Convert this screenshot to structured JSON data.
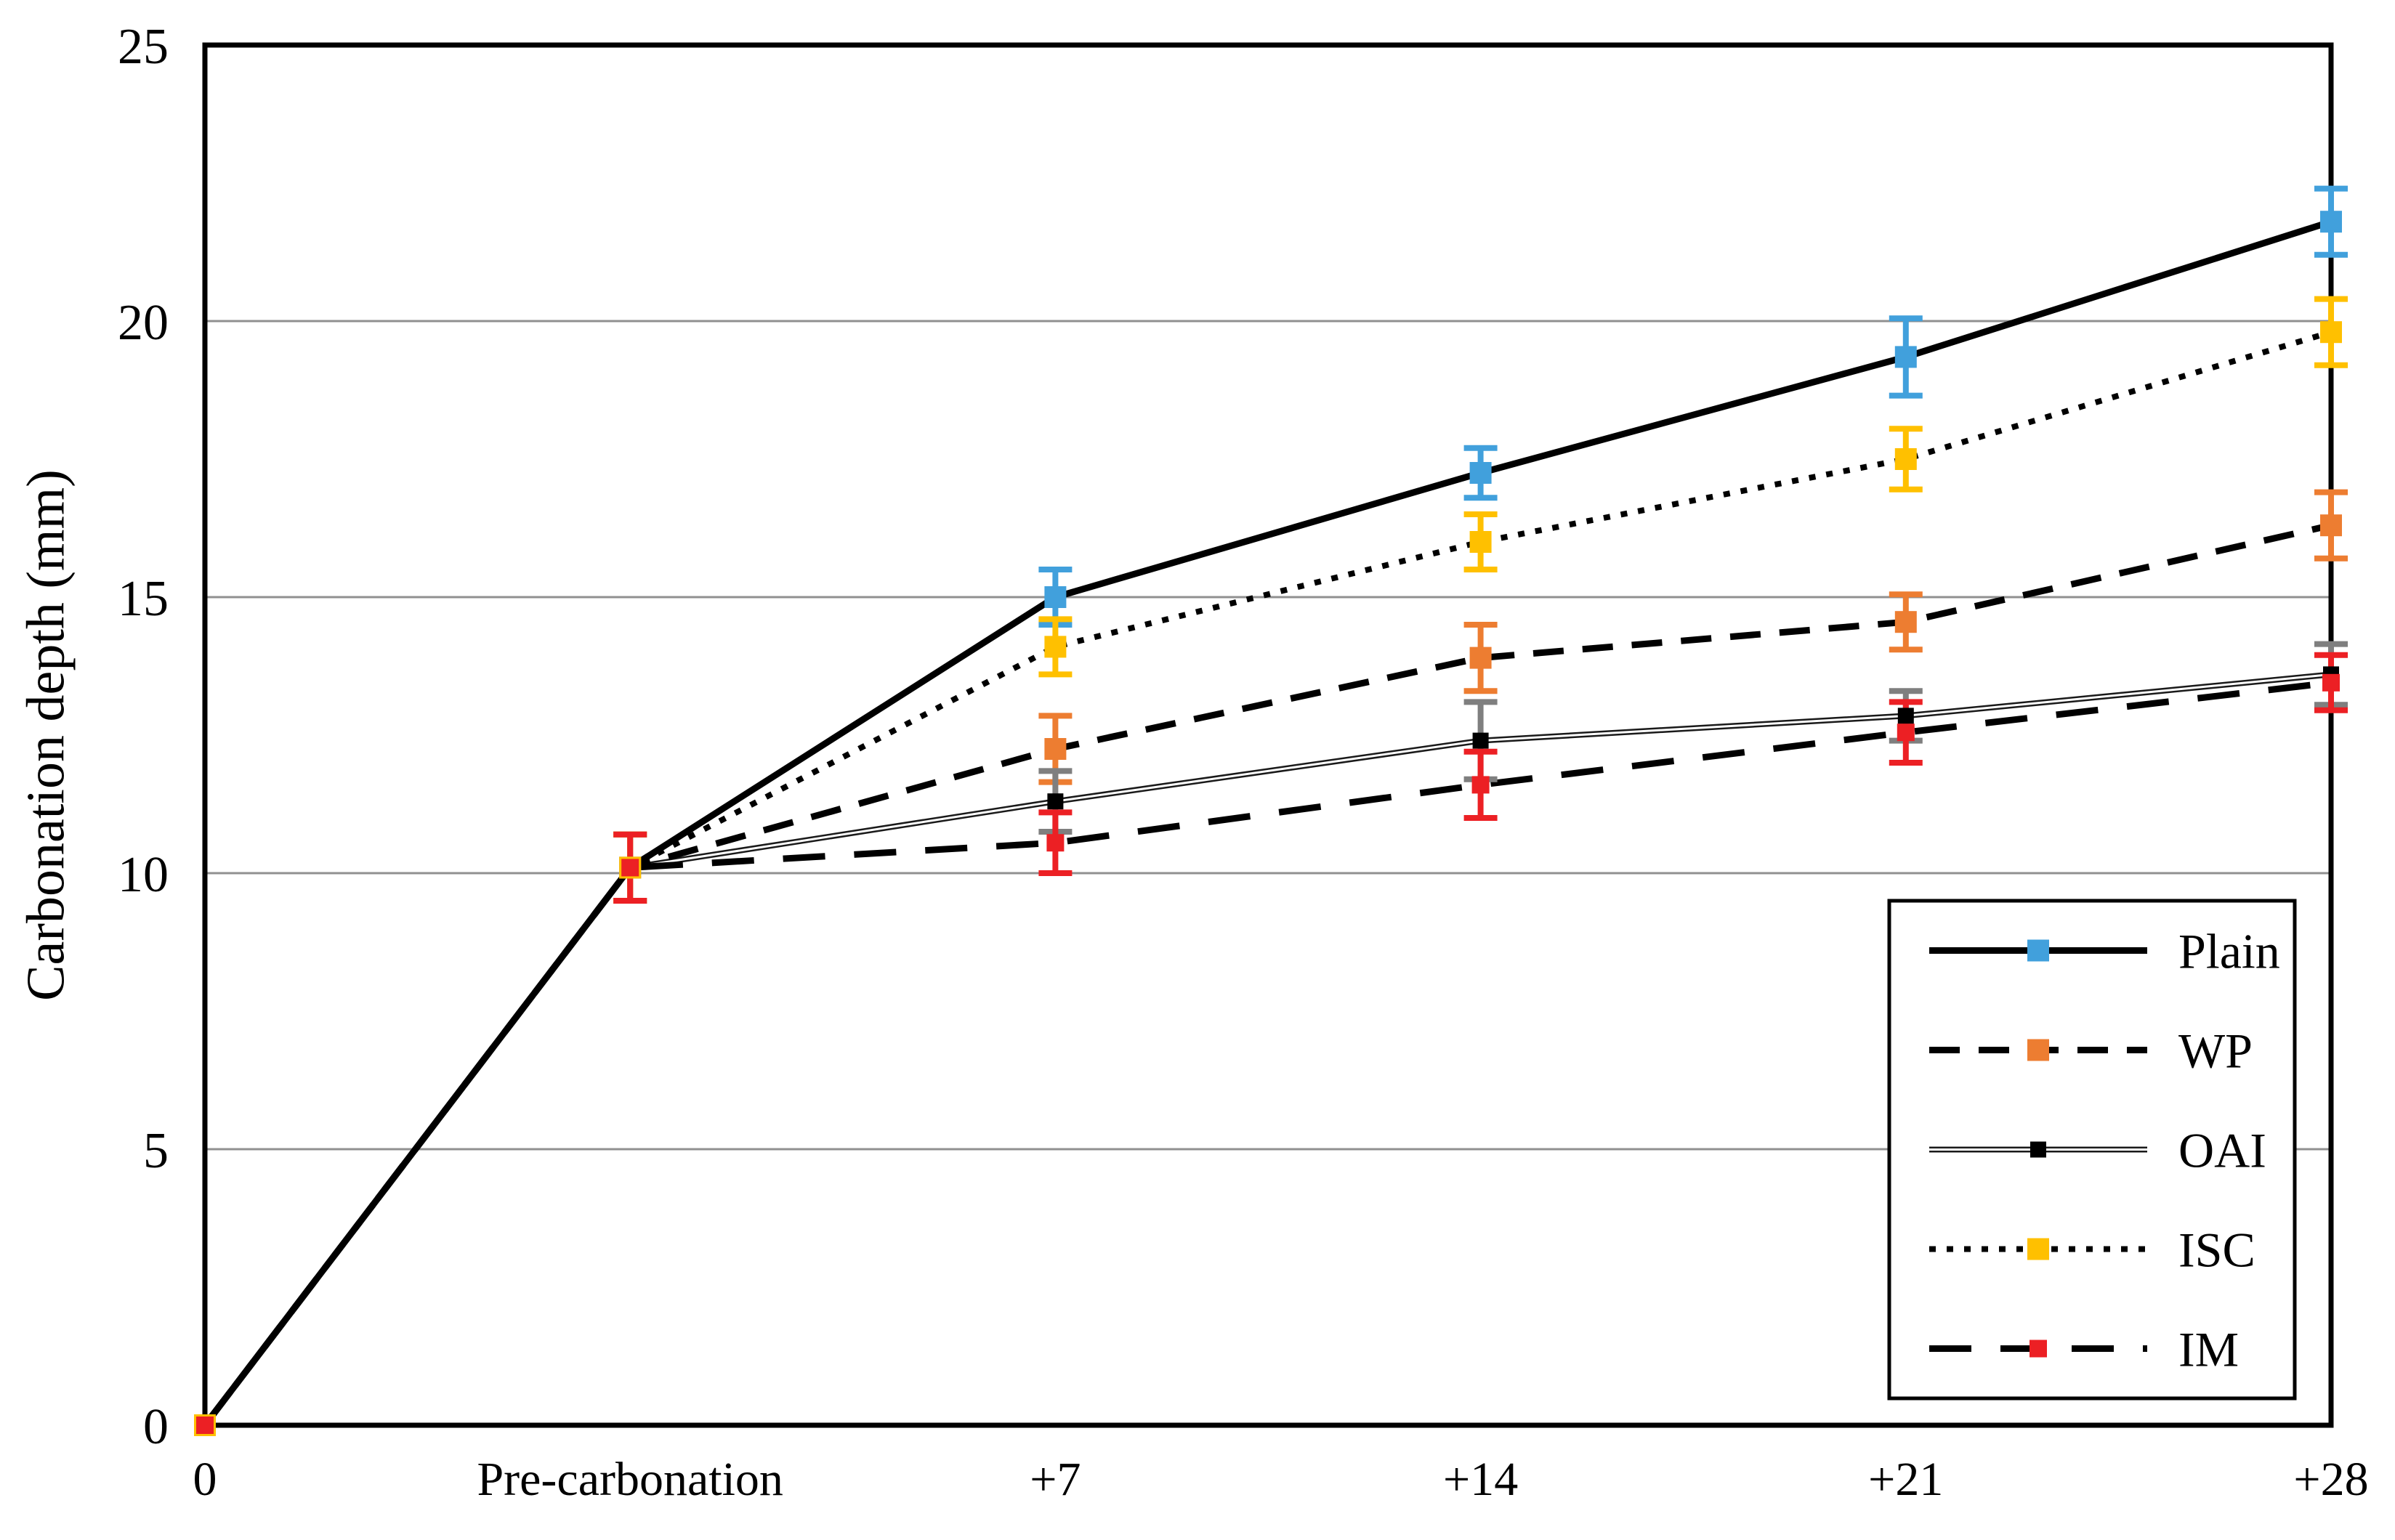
{
  "chart_data": {
    "type": "line",
    "title": "",
    "xlabel": "",
    "ylabel": "Carbonation depth (mm)",
    "categories": [
      "0",
      "Pre-carbonation",
      "+7",
      "+14",
      "+21",
      "+28"
    ],
    "y_axis": {
      "min": 0,
      "max": 25,
      "tick_step": 5,
      "tick_labels": [
        "0",
        "5",
        "10",
        "15",
        "20",
        "25"
      ]
    },
    "grid": "horizontal-only",
    "legend_position": "inside-bottom-right",
    "error_bars": true,
    "series": [
      {
        "name": "Plain",
        "marker_color": "#41A0DC",
        "err_color": "#41A0DC",
        "marker_size": 30,
        "line_style": "solid",
        "line_color": "#000000",
        "line_width": 9,
        "values": [
          0,
          10.1,
          15.0,
          17.25,
          19.35,
          21.8
        ],
        "errors": [
          0,
          0.6,
          0.5,
          0.45,
          0.7,
          0.6
        ]
      },
      {
        "name": "WP",
        "marker_color": "#ED7D31",
        "err_color": "#ED7D31",
        "marker_size": 30,
        "line_style": "dashed",
        "line_color": "#000000",
        "line_width": 9,
        "values": [
          0,
          10.1,
          12.25,
          13.9,
          14.55,
          16.3
        ],
        "errors": [
          0,
          0.6,
          0.6,
          0.6,
          0.5,
          0.6
        ]
      },
      {
        "name": "OAI",
        "marker_color": "#000000",
        "err_color": "#7F7F7F",
        "marker_size": 22,
        "line_style": "double",
        "line_color": "#1A1A1A",
        "line_width": 8,
        "values": [
          0,
          10.1,
          11.3,
          12.4,
          12.85,
          13.6
        ],
        "errors": [
          0,
          0.6,
          0.55,
          0.7,
          0.45,
          0.55
        ]
      },
      {
        "name": "ISC",
        "marker_color": "#FFC000",
        "err_color": "#FFC000",
        "marker_size": 30,
        "line_style": "dotted",
        "line_color": "#000000",
        "line_width": 8,
        "values": [
          0,
          10.1,
          14.1,
          16.0,
          17.5,
          19.8
        ],
        "errors": [
          0,
          0.6,
          0.5,
          0.5,
          0.55,
          0.6
        ]
      },
      {
        "name": "IM",
        "marker_color": "#EC2024",
        "err_color": "#EC2024",
        "marker_size": 24,
        "line_style": "longdash",
        "line_color": "#000000",
        "line_width": 9,
        "values": [
          0,
          10.1,
          10.55,
          11.6,
          12.55,
          13.45
        ],
        "errors": [
          0,
          0.6,
          0.55,
          0.6,
          0.55,
          0.5
        ]
      }
    ],
    "colors": {
      "background": "#FFFFFF",
      "gridline": "#909090",
      "axis_border": "#000000",
      "legend_background": "#FFFFFF",
      "legend_border": "#000000"
    }
  }
}
